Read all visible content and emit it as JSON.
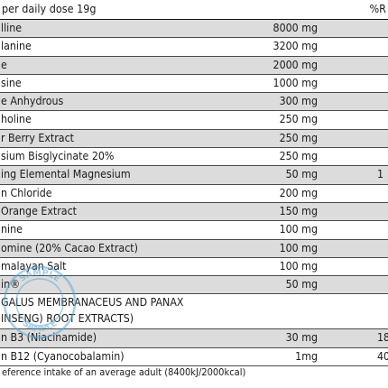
{
  "header": {
    "label": "per daily dose 19g",
    "ri_label": "%R"
  },
  "rows": [
    {
      "name": "lline",
      "amount": "8000 mg",
      "ri": "",
      "shaded": true
    },
    {
      "name": "lanine",
      "amount": "3200 mg",
      "ri": "",
      "shaded": false
    },
    {
      "name": "e",
      "amount": "2000 mg",
      "ri": "",
      "shaded": true
    },
    {
      "name": "sine",
      "amount": "1000 mg",
      "ri": "",
      "shaded": false
    },
    {
      "name": "e Anhydrous",
      "amount": "300 mg",
      "ri": "",
      "shaded": true
    },
    {
      "name": "holine",
      "amount": "250 mg",
      "ri": "",
      "shaded": false
    },
    {
      "name": "r Berry Extract",
      "amount": "250 mg",
      "ri": "",
      "shaded": true
    },
    {
      "name": "sium Bisglycinate 20%",
      "amount": "250 mg",
      "ri": "",
      "shaded": false
    },
    {
      "name": "ing Elemental Magnesium",
      "amount": "50 mg",
      "ri": "1",
      "shaded": true
    },
    {
      "name": "n Chloride",
      "amount": "200 mg",
      "ri": "",
      "shaded": false
    },
    {
      "name": "Orange Extract",
      "amount": "150 mg",
      "ri": "",
      "shaded": true
    },
    {
      "name": "nine",
      "amount": "100 mg",
      "ri": "",
      "shaded": false
    },
    {
      "name": "omine (20% Cacao Extract)",
      "amount": "100 mg",
      "ri": "",
      "shaded": true
    },
    {
      "name": "malayan Salt",
      "amount": "100 mg",
      "ri": "",
      "shaded": false
    },
    {
      "name": "in®",
      "amount": "50 mg",
      "ri": "",
      "shaded": true
    },
    {
      "name": "GALUS MEMBRANACEUS AND PANAX",
      "name2": "INSENG) ROOT EXTRACTS)",
      "amount": "",
      "ri": "",
      "shaded": false,
      "tall": true
    },
    {
      "name": "n B3 (Niacinamide)",
      "amount": "30 mg",
      "ri": "18",
      "shaded": true
    },
    {
      "name": "n B12 (Cyanocobalamin)",
      "amount": "1mg",
      "ri": "40,",
      "shaded": false
    }
  ],
  "footer": {
    "text": "eference intake of an average adult (8400kJ/2000kcal)"
  },
  "stamp": {
    "text_top": "SAMPLE",
    "text_bottom": "SAMPLE",
    "color": "#5aa7d8"
  }
}
